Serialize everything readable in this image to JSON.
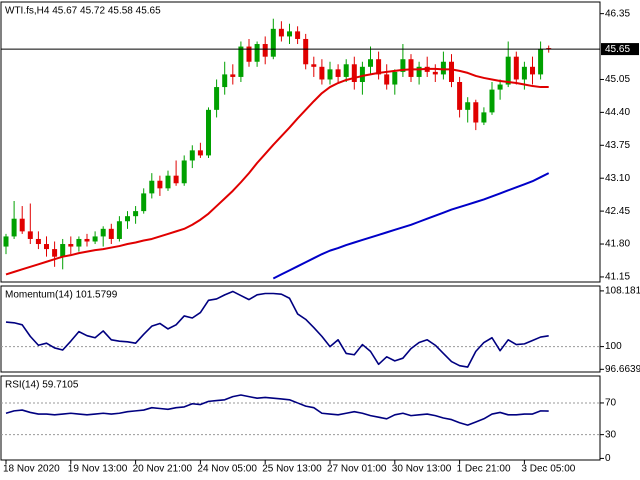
{
  "chart_data": [
    {
      "type": "candlestick",
      "title": "WTI.fs,H4  45.67 45.72 45.58 45.65",
      "categories": [
        "18 Nov 2020",
        null,
        null,
        null,
        null,
        null,
        null,
        null,
        "19 Nov 13:00",
        null,
        null,
        null,
        null,
        null,
        null,
        null,
        "20 Nov 21:00",
        null,
        null,
        null,
        null,
        null,
        null,
        null,
        "24 Nov 05:00",
        null,
        null,
        null,
        null,
        null,
        null,
        null,
        "25 Nov 13:00",
        null,
        null,
        null,
        null,
        null,
        null,
        null,
        "27 Nov 01:00",
        null,
        null,
        null,
        null,
        null,
        null,
        null,
        "30 Nov 13:00",
        null,
        null,
        null,
        null,
        null,
        null,
        null,
        "1 Dec 21:00",
        null,
        null,
        null,
        null,
        null,
        null,
        null,
        "3 Dec 05:00",
        null,
        null,
        null
      ],
      "open": [
        41.75,
        41.95,
        42.3,
        42.05,
        41.9,
        41.8,
        41.7,
        41.55,
        41.8,
        41.75,
        41.9,
        41.85,
        41.95,
        42.1,
        41.9,
        42.25,
        42.35,
        42.45,
        42.8,
        43.05,
        42.9,
        43.15,
        43.0,
        43.45,
        43.65,
        43.55,
        44.45,
        44.9,
        45.15,
        45.1,
        45.7,
        45.4,
        45.75,
        45.5,
        46.05,
        45.9,
        46.0,
        45.85,
        45.35,
        45.3,
        45.05,
        45.25,
        45.1,
        45.35,
        45.0,
        45.3,
        45.45,
        45.15,
        44.95,
        45.2,
        45.45,
        45.1,
        45.3,
        45.2,
        45.15,
        45.4,
        45.0,
        44.45,
        44.6,
        44.2,
        44.4,
        44.85,
        44.95,
        45.5,
        45.05,
        45.3,
        45.15,
        45.67
      ],
      "high": [
        42.0,
        42.65,
        42.55,
        42.6,
        42.05,
        41.95,
        41.85,
        41.9,
        41.95,
        41.95,
        42.0,
        42.05,
        42.15,
        42.2,
        42.35,
        42.45,
        42.55,
        42.9,
        43.2,
        43.15,
        43.25,
        43.45,
        43.55,
        43.75,
        43.8,
        44.5,
        45.05,
        45.4,
        45.35,
        45.8,
        45.85,
        45.8,
        45.9,
        46.25,
        46.2,
        46.15,
        46.1,
        45.95,
        45.5,
        45.45,
        45.4,
        45.35,
        45.45,
        45.5,
        45.4,
        45.7,
        45.6,
        45.35,
        45.25,
        45.75,
        45.55,
        45.4,
        45.5,
        45.35,
        45.6,
        45.55,
        45.1,
        44.7,
        44.65,
        44.5,
        45.0,
        45.05,
        45.8,
        45.6,
        45.4,
        45.5,
        45.8,
        45.72
      ],
      "low": [
        41.6,
        41.9,
        42.0,
        41.8,
        41.7,
        41.55,
        41.35,
        41.3,
        41.6,
        41.65,
        41.75,
        41.8,
        41.75,
        41.8,
        41.85,
        42.1,
        42.2,
        42.4,
        42.7,
        42.75,
        42.85,
        42.95,
        42.95,
        43.3,
        43.5,
        43.5,
        44.3,
        44.75,
        44.95,
        45.0,
        45.3,
        45.3,
        45.35,
        45.45,
        45.8,
        45.75,
        45.75,
        45.25,
        45.1,
        44.95,
        44.95,
        45.0,
        45.0,
        44.85,
        44.75,
        45.15,
        45.05,
        44.85,
        44.75,
        45.1,
        45.0,
        44.95,
        45.1,
        45.0,
        45.05,
        44.9,
        44.3,
        44.2,
        44.05,
        44.15,
        44.35,
        44.65,
        44.9,
        44.95,
        44.85,
        44.95,
        45.05,
        45.58
      ],
      "close": [
        41.95,
        42.3,
        42.05,
        41.9,
        41.8,
        41.7,
        41.55,
        41.8,
        41.75,
        41.9,
        41.85,
        41.95,
        42.1,
        41.9,
        42.25,
        42.35,
        42.45,
        42.8,
        43.05,
        42.9,
        43.15,
        43.0,
        43.45,
        43.65,
        43.55,
        44.45,
        44.9,
        45.15,
        45.1,
        45.7,
        45.4,
        45.75,
        45.5,
        46.05,
        45.9,
        46.0,
        45.85,
        45.35,
        45.3,
        45.05,
        45.25,
        45.1,
        45.35,
        45.0,
        45.3,
        45.45,
        45.15,
        44.95,
        45.2,
        45.45,
        45.1,
        45.3,
        45.2,
        45.15,
        45.4,
        45.0,
        44.45,
        44.6,
        44.2,
        44.4,
        44.85,
        44.95,
        45.5,
        45.05,
        45.3,
        45.15,
        45.65,
        45.65
      ],
      "up_color": "#00a000",
      "down_color": "#e00000",
      "series": [
        {
          "color": "#e00000",
          "values": [
            41.2,
            41.25,
            41.3,
            41.35,
            41.4,
            41.45,
            41.5,
            41.55,
            41.58,
            41.62,
            41.65,
            41.68,
            41.7,
            41.73,
            41.76,
            41.8,
            41.83,
            41.87,
            41.9,
            41.95,
            42.0,
            42.05,
            42.1,
            42.18,
            42.28,
            42.4,
            42.55,
            42.7,
            42.85,
            43.02,
            43.2,
            43.4,
            43.58,
            43.76,
            43.93,
            44.1,
            44.28,
            44.45,
            44.62,
            44.78,
            44.9,
            44.98,
            45.04,
            45.08,
            45.12,
            45.15,
            45.18,
            45.2,
            45.22,
            45.24,
            45.25,
            45.25,
            45.26,
            45.26,
            45.25,
            45.25,
            45.22,
            45.18,
            45.12,
            45.08,
            45.05,
            45.02,
            45.0,
            44.98,
            44.95,
            44.92,
            44.9,
            44.9
          ]
        },
        {
          "color": "#0000c8",
          "values": [
            null,
            null,
            null,
            null,
            null,
            null,
            null,
            null,
            null,
            null,
            null,
            null,
            null,
            null,
            null,
            null,
            null,
            null,
            null,
            null,
            null,
            null,
            null,
            null,
            null,
            null,
            null,
            null,
            null,
            null,
            null,
            null,
            null,
            41.12,
            41.2,
            41.28,
            41.36,
            41.44,
            41.52,
            41.6,
            41.67,
            41.72,
            41.78,
            41.83,
            41.88,
            41.93,
            41.98,
            42.03,
            42.08,
            42.13,
            42.18,
            42.24,
            42.3,
            42.36,
            42.42,
            42.48,
            42.53,
            42.58,
            42.63,
            42.68,
            42.74,
            42.8,
            42.86,
            42.92,
            42.98,
            43.04,
            43.12,
            43.2
          ]
        }
      ],
      "current_price": 45.65,
      "ylim": [
        41.05,
        46.58
      ],
      "yticks": [
        46.35,
        45.05,
        {
          "value": 44.4,
          "label": "44.40"
        },
        43.75,
        {
          "value": 43.1,
          "label": "43.10"
        },
        42.45,
        {
          "value": 41.8,
          "label": "41.80"
        },
        41.15
      ]
    },
    {
      "type": "line",
      "title": "Momentum(14) 101.5799",
      "series": [
        {
          "color": "#000080",
          "values": [
            103.6,
            103.5,
            103.2,
            101.5,
            100.2,
            100.5,
            99.8,
            99.5,
            100.8,
            102.2,
            101.6,
            101.3,
            102.3,
            101.0,
            100.8,
            100.7,
            100.5,
            101.8,
            103.0,
            103.4,
            102.6,
            103.2,
            104.5,
            104.2,
            105.0,
            106.8,
            107.0,
            107.6,
            108.1,
            107.5,
            106.9,
            107.6,
            107.8,
            107.8,
            107.7,
            107.1,
            104.8,
            104.0,
            102.8,
            101.5,
            100.0,
            101.0,
            99.0,
            98.8,
            100.3,
            99.3,
            97.4,
            98.5,
            97.9,
            98.3,
            99.7,
            100.6,
            101.0,
            100.2,
            99.0,
            97.8,
            97.2,
            97.0,
            99.3,
            100.6,
            101.3,
            99.4,
            101.0,
            100.3,
            100.4,
            100.9,
            101.4,
            101.5799
          ]
        }
      ],
      "levels": [
        100
      ],
      "ylim": [
        96.27,
        108.9
      ],
      "yticks": [
        108.1813,
        100,
        96.6639
      ]
    },
    {
      "type": "line",
      "title": "RSI(14) 59.7105",
      "series": [
        {
          "color": "#000080",
          "values": [
            57,
            60,
            61,
            58,
            56,
            56,
            55,
            56,
            57,
            56,
            55,
            56,
            57,
            56,
            57,
            59,
            60,
            61,
            64,
            63,
            62,
            64,
            65,
            69,
            68,
            72,
            73,
            74,
            78,
            80,
            78,
            76,
            77,
            76,
            75,
            74,
            70,
            66,
            64,
            57,
            56,
            55,
            57,
            59,
            57,
            54,
            52,
            50,
            55,
            57,
            54,
            55,
            56,
            54,
            51,
            49,
            45,
            42,
            46,
            50,
            56,
            58,
            55,
            55,
            56,
            56,
            60,
            59.7105
          ]
        }
      ],
      "levels": [
        70,
        30
      ],
      "ylim": [
        -2,
        104
      ],
      "yticks": [
        70,
        30,
        0
      ]
    }
  ]
}
